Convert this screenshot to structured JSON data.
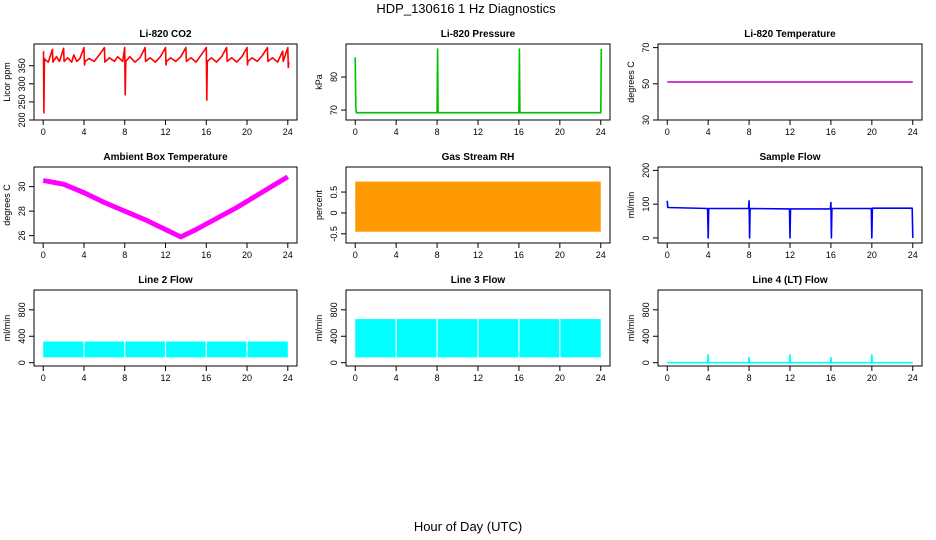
{
  "figure": {
    "title": "HDP_130616  1 Hz Diagnostics",
    "xlabel": "Hour of Day (UTC)"
  },
  "chart_data": [
    {
      "type": "line",
      "title": "Li-820 CO2",
      "ylabel": "Licor ppm",
      "color": "#ff0000",
      "xlim": [
        0,
        24
      ],
      "ylim": [
        200,
        410
      ],
      "xticks": [
        0,
        4,
        8,
        12,
        16,
        20,
        24
      ],
      "yticks": [
        200,
        250,
        300,
        350
      ],
      "series": [
        {
          "values": [
            [
              0.03,
              390
            ],
            [
              0.07,
              220
            ],
            [
              0.12,
              370
            ],
            [
              0.25,
              365
            ],
            [
              0.5,
              360
            ],
            [
              0.9,
              395
            ],
            [
              0.95,
              360
            ],
            [
              1.3,
              375
            ],
            [
              1.6,
              362
            ],
            [
              2.0,
              398
            ],
            [
              2.05,
              362
            ],
            [
              2.4,
              372
            ],
            [
              2.8,
              360
            ],
            [
              3.0,
              380
            ],
            [
              3.3,
              362
            ],
            [
              3.6,
              370
            ],
            [
              4.0,
              400
            ],
            [
              4.05,
              352
            ],
            [
              4.1,
              362
            ],
            [
              4.5,
              370
            ],
            [
              5.0,
              362
            ],
            [
              5.5,
              380
            ],
            [
              6.0,
              400
            ],
            [
              6.05,
              360
            ],
            [
              6.5,
              372
            ],
            [
              7.0,
              362
            ],
            [
              7.3,
              375
            ],
            [
              7.8,
              362
            ],
            [
              8.0,
              400
            ],
            [
              8.05,
              270
            ],
            [
              8.1,
              362
            ],
            [
              8.5,
              375
            ],
            [
              9.0,
              360
            ],
            [
              9.5,
              372
            ],
            [
              10.0,
              400
            ],
            [
              10.05,
              362
            ],
            [
              10.5,
              372
            ],
            [
              11.0,
              360
            ],
            [
              11.5,
              375
            ],
            [
              12.0,
              400
            ],
            [
              12.05,
              352
            ],
            [
              12.1,
              362
            ],
            [
              12.5,
              372
            ],
            [
              13.0,
              362
            ],
            [
              13.5,
              375
            ],
            [
              14.0,
              400
            ],
            [
              14.05,
              362
            ],
            [
              14.5,
              372
            ],
            [
              15.0,
              360
            ],
            [
              15.5,
              380
            ],
            [
              16.0,
              400
            ],
            [
              16.05,
              255
            ],
            [
              16.1,
              362
            ],
            [
              16.5,
              372
            ],
            [
              17.0,
              360
            ],
            [
              17.5,
              375
            ],
            [
              18.0,
              400
            ],
            [
              18.05,
              362
            ],
            [
              18.5,
              372
            ],
            [
              19.0,
              360
            ],
            [
              19.5,
              375
            ],
            [
              20.0,
              400
            ],
            [
              20.05,
              352
            ],
            [
              20.1,
              362
            ],
            [
              20.5,
              372
            ],
            [
              21.0,
              362
            ],
            [
              21.5,
              378
            ],
            [
              22.0,
              400
            ],
            [
              22.05,
              362
            ],
            [
              22.5,
              372
            ],
            [
              23.0,
              360
            ],
            [
              23.5,
              390
            ],
            [
              23.55,
              362
            ],
            [
              24.0,
              400
            ],
            [
              24.05,
              345
            ],
            [
              24.1,
              360
            ]
          ]
        }
      ]
    },
    {
      "type": "line",
      "title": "Li-820 Pressure",
      "ylabel": "kPa",
      "color": "#00c000",
      "xlim": [
        0,
        24
      ],
      "ylim": [
        67,
        90
      ],
      "xticks": [
        0,
        4,
        8,
        12,
        16,
        20,
        24
      ],
      "yticks": [
        70,
        80
      ],
      "series": [
        {
          "values": [
            [
              0.0,
              86
            ],
            [
              0.05,
              71
            ],
            [
              0.1,
              69.2
            ],
            [
              2,
              69.2
            ],
            [
              4,
              69.2
            ],
            [
              6,
              69.2
            ],
            [
              8.0,
              69.2
            ],
            [
              8.05,
              88.5
            ],
            [
              8.1,
              69.2
            ],
            [
              10,
              69.2
            ],
            [
              12,
              69.2
            ],
            [
              14,
              69.2
            ],
            [
              16.0,
              69.2
            ],
            [
              16.05,
              88.5
            ],
            [
              16.1,
              69.2
            ],
            [
              18,
              69.2
            ],
            [
              20,
              69.2
            ],
            [
              22,
              69.2
            ],
            [
              24.0,
              69.2
            ],
            [
              24.05,
              88.5
            ]
          ]
        }
      ]
    },
    {
      "type": "line",
      "title": "Li-820 Temperature",
      "ylabel": "degrees C",
      "color": "#c000c0",
      "xlim": [
        0,
        24
      ],
      "ylim": [
        30,
        72
      ],
      "xticks": [
        0,
        4,
        8,
        12,
        16,
        20,
        24
      ],
      "yticks": [
        30,
        50,
        70
      ],
      "series": [
        {
          "values": [
            [
              0,
              51
            ],
            [
              24,
              51
            ]
          ]
        }
      ]
    },
    {
      "type": "line",
      "title": "Ambient Box Temperature",
      "ylabel": "degrees C",
      "color": "#ff00ff",
      "xlim": [
        0,
        24
      ],
      "ylim": [
        25.4,
        31.6
      ],
      "xticks": [
        0,
        4,
        8,
        12,
        16,
        20,
        24
      ],
      "yticks": [
        26,
        28,
        30
      ],
      "band": 0.4,
      "series": [
        {
          "values": [
            [
              0,
              30.5
            ],
            [
              2,
              30.2
            ],
            [
              4,
              29.5
            ],
            [
              6,
              28.7
            ],
            [
              8,
              28.0
            ],
            [
              10,
              27.3
            ],
            [
              12,
              26.5
            ],
            [
              13.5,
              25.9
            ],
            [
              15,
              26.5
            ],
            [
              17,
              27.4
            ],
            [
              19,
              28.3
            ],
            [
              21,
              29.3
            ],
            [
              23,
              30.3
            ],
            [
              24,
              30.8
            ]
          ]
        }
      ]
    },
    {
      "type": "line",
      "title": "Gas Stream RH",
      "ylabel": "percent",
      "color": "#ff9900",
      "xlim": [
        0,
        24
      ],
      "ylim": [
        -0.72,
        1.1
      ],
      "xticks": [
        0,
        4,
        8,
        12,
        16,
        20,
        24
      ],
      "yticks": [
        -0.5,
        0.0,
        0.5
      ],
      "band_range": [
        -0.45,
        0.75
      ],
      "series": [
        {
          "values": [
            [
              0,
              0.18
            ],
            [
              12,
              0.2
            ],
            [
              24,
              0.22
            ]
          ]
        }
      ]
    },
    {
      "type": "line",
      "title": "Sample Flow",
      "ylabel": "ml/min",
      "color": "#0000ff",
      "xlim": [
        0,
        24
      ],
      "ylim": [
        -15,
        210
      ],
      "xticks": [
        0,
        4,
        8,
        12,
        16,
        20,
        24
      ],
      "yticks": [
        0,
        100,
        200
      ],
      "series": [
        {
          "values": [
            [
              0,
              110
            ],
            [
              0.05,
              90
            ],
            [
              3.95,
              87
            ],
            [
              4.0,
              0
            ],
            [
              4.05,
              87
            ],
            [
              7.95,
              87
            ],
            [
              8.0,
              110
            ],
            [
              8.05,
              0
            ],
            [
              8.1,
              87
            ],
            [
              11.95,
              86
            ],
            [
              12.0,
              0
            ],
            [
              12.05,
              86
            ],
            [
              15.95,
              86
            ],
            [
              16.0,
              105
            ],
            [
              16.05,
              0
            ],
            [
              16.1,
              87
            ],
            [
              19.95,
              87
            ],
            [
              20.0,
              0
            ],
            [
              20.05,
              88
            ],
            [
              23.95,
              88
            ],
            [
              24.0,
              0
            ]
          ]
        }
      ]
    },
    {
      "type": "line",
      "title": "Line 2 Flow",
      "ylabel": "ml/min",
      "color": "#00ffff",
      "xlim": [
        0,
        24
      ],
      "ylim": [
        -50,
        1100
      ],
      "xticks": [
        0,
        4,
        8,
        12,
        16,
        20,
        24
      ],
      "yticks": [
        0,
        400,
        800
      ],
      "band_range": [
        80,
        320
      ],
      "gaps": [
        4,
        8,
        12,
        16,
        20
      ]
    },
    {
      "type": "line",
      "title": "Line 3 Flow",
      "ylabel": "ml/min",
      "color": "#00ffff",
      "xlim": [
        0,
        24
      ],
      "ylim": [
        -50,
        1100
      ],
      "xticks": [
        0,
        4,
        8,
        12,
        16,
        20,
        24
      ],
      "yticks": [
        0,
        400,
        800
      ],
      "band_range": [
        80,
        660
      ],
      "gaps": [
        4,
        8,
        12,
        16,
        20
      ]
    },
    {
      "type": "line",
      "title": "Line 4 (LT) Flow",
      "ylabel": "ml/min",
      "color": "#00ffff",
      "xlim": [
        0,
        24
      ],
      "ylim": [
        -50,
        1100
      ],
      "xticks": [
        0,
        4,
        8,
        12,
        16,
        20,
        24
      ],
      "yticks": [
        0,
        400,
        800
      ],
      "series": [
        {
          "values": [
            [
              0,
              0
            ],
            [
              3.95,
              0
            ],
            [
              4.0,
              120
            ],
            [
              4.05,
              0
            ],
            [
              7.95,
              0
            ],
            [
              8.0,
              80
            ],
            [
              8.05,
              0
            ],
            [
              11.95,
              0
            ],
            [
              12.0,
              120
            ],
            [
              12.05,
              0
            ],
            [
              15.95,
              0
            ],
            [
              16.0,
              80
            ],
            [
              16.05,
              0
            ],
            [
              19.95,
              0
            ],
            [
              20.0,
              120
            ],
            [
              20.05,
              0
            ],
            [
              24,
              0
            ]
          ]
        }
      ]
    }
  ]
}
